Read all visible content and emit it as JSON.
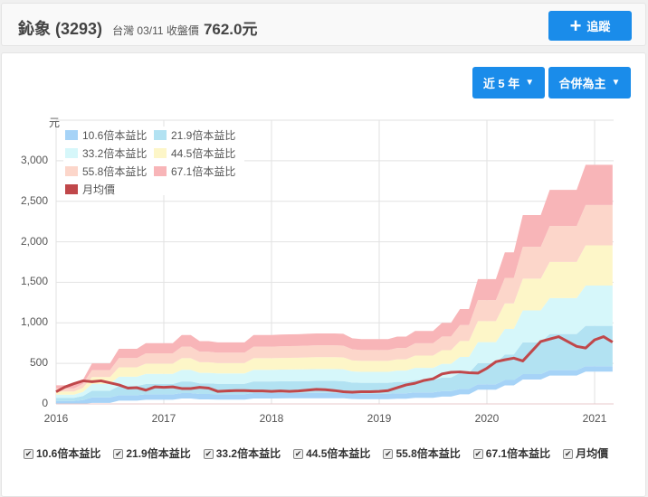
{
  "header": {
    "stock_name": "鈊象 (3293)",
    "market": "台灣",
    "date": "03/11",
    "close_label": "收盤價",
    "close_price": "762.0元",
    "follow_button": "追蹤"
  },
  "controls": {
    "period": "近 5 年",
    "statement": "合併為主"
  },
  "colors": {
    "accent": "#1a8cea",
    "price_line": "#c0474a"
  },
  "chart_data": {
    "type": "area",
    "y_unit": "元",
    "ylim": [
      0,
      3500
    ],
    "y_ticks": [
      "0",
      "500",
      "1,000",
      "1,500",
      "2,000",
      "2,500",
      "3,000"
    ],
    "x_ticks": [
      "2016",
      "2017",
      "2018",
      "2019",
      "2020",
      "2021"
    ],
    "x_start": "2016-01",
    "x_end": "2021-03",
    "x_interval": "monthly",
    "grid": true,
    "legend": "top-left",
    "series": [
      {
        "name": "10.6倍本益比",
        "color": "#a6d3f7",
        "values": [
          36,
          36,
          36,
          47,
          79,
          79,
          79,
          107,
          107,
          107,
          118,
          118,
          118,
          118,
          134,
          134,
          122,
          122,
          120,
          120,
          120,
          120,
          134,
          134,
          134,
          135,
          136,
          136,
          137,
          137,
          137,
          137,
          137,
          128,
          126,
          126,
          126,
          126,
          131,
          131,
          142,
          142,
          142,
          158,
          158,
          185,
          185,
          243,
          243,
          243,
          295,
          295,
          368,
          368,
          368,
          417,
          417,
          417,
          417,
          466,
          466,
          466,
          466
        ]
      },
      {
        "name": "21.9倍本益比",
        "color": "#b2e2f2",
        "values": [
          75,
          75,
          75,
          98,
          163,
          163,
          163,
          222,
          222,
          222,
          245,
          245,
          245,
          245,
          277,
          277,
          253,
          253,
          248,
          248,
          248,
          248,
          277,
          277,
          277,
          279,
          280,
          281,
          282,
          284,
          284,
          284,
          282,
          264,
          261,
          261,
          261,
          261,
          271,
          271,
          294,
          294,
          294,
          326,
          326,
          382,
          382,
          503,
          503,
          503,
          610,
          610,
          760,
          760,
          760,
          862,
          862,
          862,
          862,
          963,
          963,
          963,
          963
        ]
      },
      {
        "name": "33.2倍本益比",
        "color": "#d6f7fa",
        "values": [
          114,
          114,
          114,
          148,
          247,
          247,
          247,
          336,
          336,
          336,
          371,
          371,
          371,
          371,
          421,
          421,
          383,
          383,
          376,
          376,
          376,
          376,
          421,
          421,
          421,
          423,
          425,
          426,
          428,
          430,
          430,
          430,
          428,
          401,
          396,
          396,
          396,
          396,
          411,
          411,
          445,
          445,
          445,
          495,
          495,
          579,
          579,
          762,
          762,
          762,
          925,
          925,
          1153,
          1153,
          1153,
          1306,
          1306,
          1306,
          1306,
          1460,
          1460,
          1460,
          1460
        ]
      },
      {
        "name": "44.5倍本益比",
        "color": "#fdf6c8",
        "values": [
          153,
          153,
          153,
          199,
          332,
          332,
          332,
          451,
          451,
          451,
          497,
          497,
          497,
          497,
          564,
          564,
          514,
          514,
          504,
          504,
          504,
          504,
          564,
          564,
          564,
          567,
          569,
          570,
          574,
          577,
          577,
          577,
          574,
          537,
          531,
          531,
          531,
          531,
          550,
          550,
          597,
          597,
          597,
          663,
          663,
          776,
          776,
          1021,
          1021,
          1021,
          1240,
          1240,
          1545,
          1545,
          1545,
          1751,
          1751,
          1751,
          1751,
          1956,
          1956,
          1956,
          1956
        ]
      },
      {
        "name": "55.8倍本益比",
        "color": "#fcd6ca",
        "values": [
          191,
          191,
          191,
          249,
          416,
          416,
          416,
          565,
          565,
          565,
          624,
          624,
          624,
          624,
          707,
          707,
          644,
          644,
          632,
          632,
          632,
          632,
          707,
          707,
          707,
          711,
          713,
          715,
          719,
          723,
          723,
          723,
          719,
          674,
          665,
          665,
          665,
          665,
          690,
          690,
          748,
          748,
          748,
          832,
          832,
          973,
          973,
          1281,
          1281,
          1281,
          1555,
          1555,
          1938,
          1938,
          1938,
          2195,
          2195,
          2195,
          2195,
          2453,
          2453,
          2453,
          2453
        ]
      },
      {
        "name": "67.1倍本益比",
        "color": "#f8b5b8",
        "values": [
          230,
          230,
          230,
          300,
          500,
          500,
          500,
          680,
          680,
          680,
          750,
          750,
          750,
          750,
          850,
          850,
          775,
          775,
          760,
          760,
          760,
          760,
          850,
          850,
          850,
          855,
          858,
          860,
          865,
          870,
          870,
          870,
          865,
          810,
          800,
          800,
          800,
          800,
          830,
          830,
          900,
          900,
          900,
          1000,
          1000,
          1170,
          1170,
          1540,
          1540,
          1540,
          1870,
          1870,
          2330,
          2330,
          2330,
          2640,
          2640,
          2640,
          2640,
          2950,
          2950,
          2950,
          2950
        ]
      },
      {
        "name": "月均價",
        "color": "#c0474a",
        "type": "line",
        "values": [
          150,
          210,
          250,
          285,
          275,
          285,
          260,
          235,
          195,
          200,
          170,
          210,
          205,
          210,
          190,
          190,
          205,
          195,
          155,
          160,
          165,
          165,
          160,
          160,
          155,
          160,
          155,
          160,
          170,
          180,
          175,
          165,
          150,
          145,
          150,
          150,
          155,
          165,
          200,
          235,
          255,
          290,
          310,
          370,
          390,
          395,
          385,
          380,
          440,
          520,
          545,
          565,
          530,
          650,
          770,
          800,
          830,
          770,
          710,
          690,
          790,
          830,
          762
        ]
      }
    ]
  },
  "bottom_legend": {
    "items": [
      "10.6倍本益比",
      "21.9倍本益比",
      "33.2倍本益比",
      "44.5倍本益比",
      "55.8倍本益比",
      "67.1倍本益比",
      "月均價"
    ]
  }
}
